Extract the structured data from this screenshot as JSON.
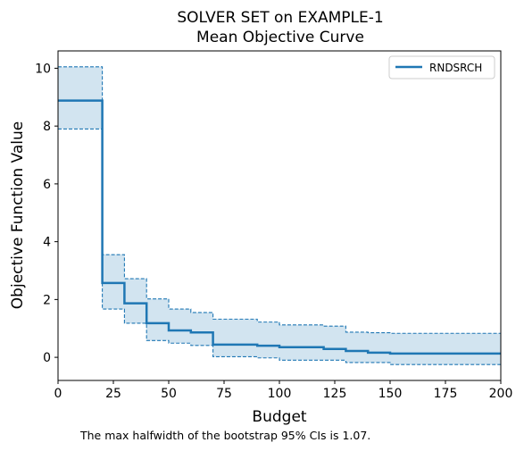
{
  "chart_data": {
    "type": "line",
    "title": [
      "SOLVER SET on EXAMPLE-1",
      "Mean Objective Curve"
    ],
    "xlabel": "Budget",
    "ylabel": "Objective Function Value",
    "xlim": [
      0,
      200
    ],
    "ylim": [
      -0.8,
      10.6
    ],
    "x_ticks": [
      0,
      25,
      50,
      75,
      100,
      125,
      150,
      175,
      200
    ],
    "y_ticks": [
      0,
      2,
      4,
      6,
      8,
      10
    ],
    "grid": false,
    "legend_position": "top-right",
    "series": [
      {
        "name": "RNDSRCH",
        "color": "#1f77b4",
        "step": true,
        "x": [
          0,
          20,
          30,
          40,
          50,
          60,
          70,
          90,
          100,
          120,
          130,
          140,
          150,
          200
        ],
        "y": [
          8.88,
          2.57,
          1.87,
          1.18,
          0.93,
          0.86,
          0.44,
          0.4,
          0.35,
          0.29,
          0.22,
          0.16,
          0.13,
          0.13
        ],
        "ci_low": [
          7.9,
          1.67,
          1.18,
          0.58,
          0.49,
          0.41,
          0.02,
          -0.02,
          -0.1,
          -0.1,
          -0.18,
          -0.18,
          -0.25,
          -0.25
        ],
        "ci_high": [
          10.05,
          3.55,
          2.72,
          2.02,
          1.67,
          1.55,
          1.32,
          1.22,
          1.12,
          1.08,
          0.87,
          0.85,
          0.83,
          0.83
        ]
      }
    ]
  },
  "footnote": "The max halfwidth of the bootstrap 95% CIs is 1.07."
}
